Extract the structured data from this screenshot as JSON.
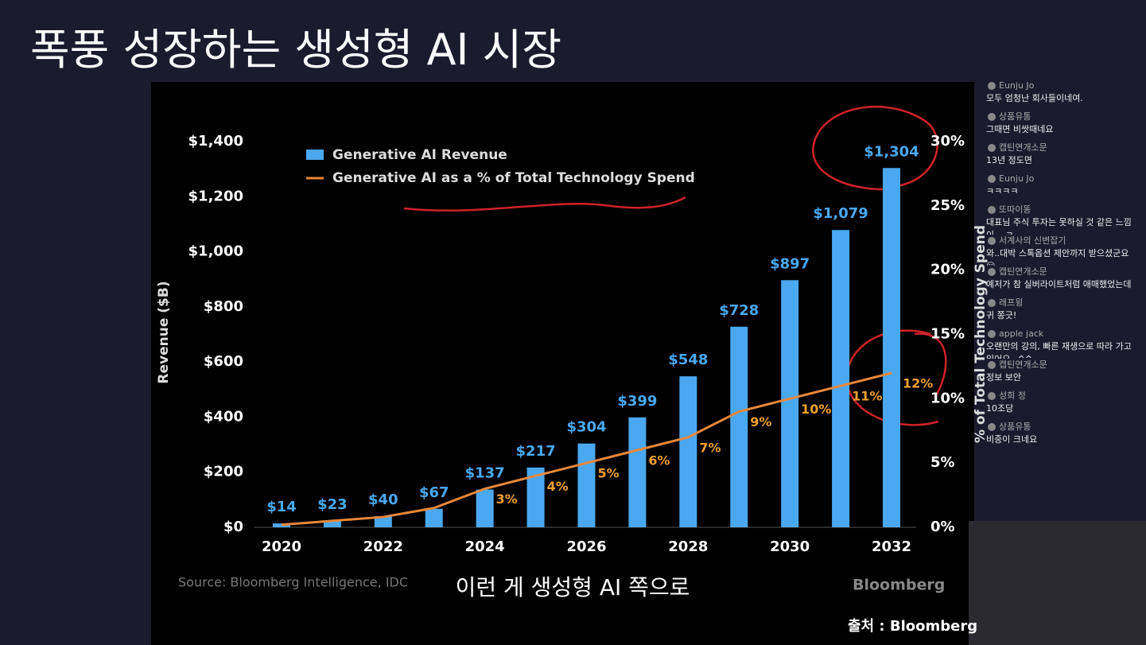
{
  "page_title": "폭풍 성장하는 생성형 AI 시장",
  "caption": "이런 게 생성형 AI 쪽으로",
  "source_credit": "출처 : Bloomberg",
  "chart_data": {
    "type": "bar",
    "categories": [
      "2020",
      null,
      "2022",
      null,
      "2024",
      null,
      "2026",
      null,
      "2028",
      null,
      "2030",
      null,
      "2032"
    ],
    "series": [
      {
        "name": "Generative AI Revenue",
        "type": "bar",
        "color": "#4aa8f0",
        "values": [
          14,
          23,
          40,
          67,
          137,
          217,
          304,
          399,
          548,
          728,
          897,
          1079,
          1304
        ],
        "value_labels": [
          "$14",
          "$23",
          "$40",
          "$67",
          "$137",
          "$217",
          "$304",
          "$399",
          "$548",
          "$728",
          "$897",
          "$1,079",
          "$1,304"
        ]
      },
      {
        "name": "Generative AI as a % of Total Technology Spend",
        "type": "line",
        "axis": "y2",
        "color": "#e8873a",
        "values": [
          0.2,
          0.5,
          0.8,
          1.5,
          3,
          4,
          5,
          6,
          7,
          9,
          10,
          11,
          12
        ],
        "value_labels": [
          null,
          null,
          null,
          null,
          "3%",
          "4%",
          "5%",
          "6%",
          "7%",
          "9%",
          "10%",
          "11%",
          "12%"
        ]
      }
    ],
    "y_label": "Revenue ($B)",
    "y2_label": "% of Total Technology Spend",
    "ylim": [
      0,
      1400
    ],
    "yticks": [
      {
        "value": 0,
        "label": "$0"
      },
      {
        "value": 200,
        "label": "$200"
      },
      {
        "value": 400,
        "label": "$400"
      },
      {
        "value": 600,
        "label": "$600"
      },
      {
        "value": 800,
        "label": "$800"
      },
      {
        "value": 1000,
        "label": "$1,000"
      },
      {
        "value": 1200,
        "label": "$1,200"
      },
      {
        "value": 1400,
        "label": "$1,400"
      }
    ],
    "y2lim": [
      0,
      30
    ],
    "y2ticks": [
      {
        "value": 0,
        "label": "0%"
      },
      {
        "value": 5,
        "label": "5%"
      },
      {
        "value": 10,
        "label": "10%"
      },
      {
        "value": 15,
        "label": "15%"
      },
      {
        "value": 20,
        "label": "20%"
      },
      {
        "value": 25,
        "label": "25%"
      },
      {
        "value": 30,
        "label": "30%"
      }
    ],
    "source": "Source: Bloomberg Intelligence, IDC",
    "brand": "Bloomberg",
    "legend": "upper left"
  },
  "chat": {
    "messages": [
      {
        "user": "Eunju Jo",
        "text": "모두 엄청난 회사들이네여."
      },
      {
        "user": "상품유통",
        "text": "그때면 비쌋때네요"
      },
      {
        "user": "캡틴연개소문",
        "text": "13년 정도면"
      },
      {
        "user": "Eunju Jo",
        "text": "ㅋㅋㅋㅋ"
      },
      {
        "user": "또따이똥",
        "text": "대표님 주식 투자는 못하실 것 같은 느낌이,,, ㅋ"
      },
      {
        "user": "서계사의 신변잡기",
        "text": "와..대박 스톡옵션 제안까지 받으셨군요 😮"
      },
      {
        "user": "캡틴연개소문",
        "text": "예저가 참 실버라이트처럼 애매했었는데"
      },
      {
        "user": "래프윙",
        "text": "귀 쫑긋!"
      },
      {
        "user": "apple jack",
        "text": "오랜만의 강의, 빠른 재생으로 따라 가고 있어요~^^"
      },
      {
        "user": "캡틴연개소문",
        "text": "정보 보안"
      },
      {
        "user": "성희 정",
        "text": "10조당"
      },
      {
        "user": "상품유통",
        "text": "비중이 크네요"
      }
    ]
  }
}
